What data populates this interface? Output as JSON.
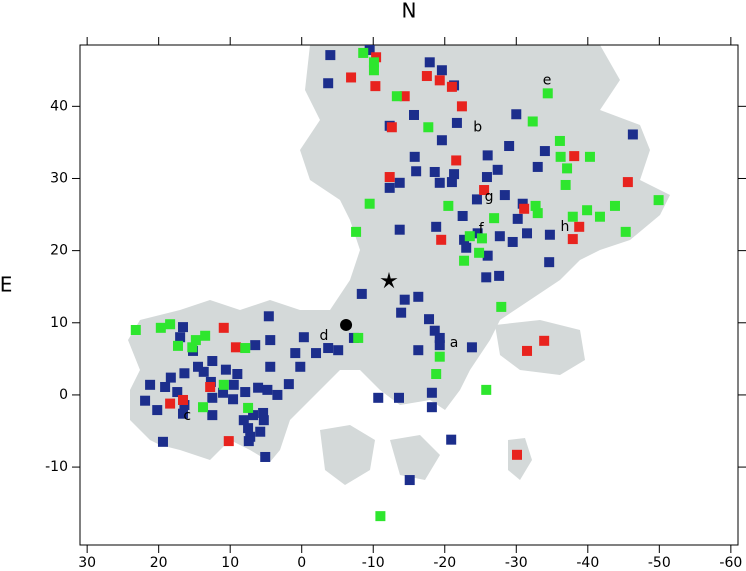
{
  "chart_data": {
    "type": "scatter",
    "top_label": "N",
    "left_label": "E",
    "xlim": [
      31,
      -61
    ],
    "ylim": [
      -20.8,
      48.5
    ],
    "xticks": [
      30,
      20,
      10,
      0,
      -10,
      -20,
      -30,
      -40,
      -50,
      -60
    ],
    "yticks": [
      -10,
      0,
      10,
      20,
      30,
      40
    ],
    "series": [
      {
        "color": "#1c2e8c",
        "x": [
          -9.5,
          -4.0,
          -17.9,
          -19.6,
          -21.3,
          -15.7,
          -12.3,
          -21.7,
          -30.0,
          -46.3,
          -15.8,
          -19.6,
          -26.0,
          -29.0,
          -34.0,
          -33.0,
          -16.0,
          -18.6,
          -21.3,
          -27.4,
          -25.9,
          -21.0,
          -13.7,
          -12.3,
          -19.3,
          -28.4,
          -30.9,
          -24.5,
          -22.5,
          -30.2,
          -31.5,
          -34.7,
          -18.8,
          -22.7,
          -23.0,
          -27.7,
          -29.5,
          -13.7,
          -24.6,
          -26.0,
          -25.8,
          -27.6,
          -34.6,
          -8.4,
          -14.4,
          -13.9,
          -16.3,
          -18.6,
          -17.8,
          -19.3,
          -19.3,
          -23.8,
          -16.3,
          -7.3,
          -5.1,
          -3.7,
          -2.0,
          -0.3,
          0.9,
          0.2,
          1.8,
          3.4,
          4.4,
          6.5,
          4.4,
          6.1,
          7.9,
          9.5,
          9.0,
          10.6,
          11.0,
          13.7,
          12.7,
          12.5,
          12.5,
          9.6,
          8.1,
          7.5,
          6.8,
          5.4,
          5.3,
          5.8,
          7.2,
          5.1,
          15.2,
          14.5,
          16.4,
          17.0,
          16.6,
          12.5,
          18.3,
          19.1,
          20.2,
          16.4,
          16.6,
          19.4,
          21.9,
          21.2,
          4.6,
          7.4,
          4.8,
          -10.7,
          -13.6,
          -18.2,
          -18.2,
          -20.9,
          -15.1,
          17.4,
          -3.7
        ],
        "values": [
          47.8,
          47.1,
          46.1,
          45.0,
          42.9,
          38.8,
          37.3,
          37.7,
          38.9,
          36.1,
          33.0,
          35.3,
          33.2,
          34.5,
          33.8,
          31.6,
          31.0,
          30.9,
          30.6,
          31.2,
          30.2,
          29.5,
          29.4,
          28.7,
          29.4,
          27.7,
          26.5,
          27.1,
          24.8,
          24.4,
          22.4,
          22.2,
          23.3,
          21.5,
          20.4,
          22.0,
          21.2,
          22.9,
          22.4,
          19.3,
          16.3,
          16.5,
          18.4,
          14.0,
          13.2,
          11.4,
          13.6,
          8.9,
          10.5,
          7.9,
          6.9,
          6.6,
          6.2,
          7.9,
          6.2,
          6.5,
          5.8,
          8.0,
          5.8,
          3.9,
          1.5,
          0,
          7.6,
          6.9,
          3.9,
          1.0,
          0.4,
          1.4,
          2.9,
          3.5,
          0.3,
          3.2,
          1.8,
          -0.4,
          -2.8,
          -0.6,
          -3.5,
          -4.6,
          -2.8,
          -2.5,
          -3.5,
          -5.1,
          -5.8,
          -8.6,
          6.1,
          3.9,
          3.0,
          8.0,
          9.4,
          4.7,
          2.4,
          1.1,
          -2.1,
          -1.4,
          -2.6,
          -6.5,
          -0.8,
          1.4,
          10.9,
          -6.4,
          0.7,
          -0.4,
          -0.4,
          0.3,
          -1.7,
          -6.2,
          -11.8,
          0.4,
          43.2
        ]
      },
      {
        "color": "#e8231e",
        "x": [
          -10.4,
          -6.9,
          -10.3,
          -14.4,
          -17.5,
          -19.3,
          -21.0,
          -22.4,
          -12.6,
          -21.6,
          -12.3,
          -25.5,
          -31.1,
          -38.8,
          -37.9,
          -19.5,
          -38.1,
          -45.6,
          10.9,
          9.2,
          12.8,
          18.4,
          16.6,
          10.2,
          -31.5,
          -33.9,
          -30.1
        ],
        "values": [
          46.8,
          44.0,
          42.8,
          41.4,
          44.2,
          43.6,
          42.7,
          40.0,
          37.1,
          32.5,
          30.2,
          28.4,
          25.8,
          23.3,
          21.6,
          21.5,
          33.1,
          29.5,
          9.3,
          6.6,
          1.1,
          -1.2,
          -0.7,
          -6.4,
          6.1,
          7.5,
          -8.3
        ]
      },
      {
        "color": "#2ee62e",
        "x": [
          -8.6,
          -10.1,
          -10.1,
          -13.3,
          -17.7,
          -32.3,
          -34.4,
          -36.1,
          -36.2,
          -40.3,
          -20.5,
          -9.5,
          -32.7,
          -33.0,
          -26.9,
          -37.9,
          -39.9,
          -41.7,
          -43.8,
          -45.3,
          -49.9,
          -25.2,
          -24.8,
          -22.7,
          -7.6,
          -27.9,
          23.2,
          19.7,
          18.4,
          14.8,
          17.3,
          15.3,
          13.5,
          10.9,
          7.9,
          7.5,
          13.8,
          -7.9,
          -19.3,
          -18.8,
          -25.8,
          -11.0,
          -23.5,
          -36.9,
          -37.1
        ],
        "values": [
          47.4,
          46.1,
          45.0,
          41.4,
          37.1,
          37.9,
          41.8,
          35.2,
          33.0,
          33.0,
          26.2,
          26.5,
          26.2,
          25.2,
          24.5,
          24.7,
          25.6,
          24.7,
          26.2,
          22.6,
          27.0,
          21.7,
          19.7,
          18.6,
          22.6,
          12.2,
          9.0,
          9.3,
          9.8,
          7.6,
          6.8,
          6.6,
          8.2,
          1.4,
          6.5,
          -1.8,
          -1.7,
          7.9,
          5.3,
          2.9,
          0.7,
          -16.8,
          22.0,
          29.1,
          31.4
        ]
      }
    ],
    "markers": [
      {
        "symbol": "star",
        "x": -12.2,
        "y": 15.8
      },
      {
        "symbol": "dot",
        "x": -6.2,
        "y": 9.7
      }
    ],
    "annotations": [
      {
        "text": "e",
        "x": -34.3,
        "y": 43.6
      },
      {
        "text": "b",
        "x": -24.6,
        "y": 37.1
      },
      {
        "text": "g",
        "x": -26.2,
        "y": 27.4
      },
      {
        "text": "h",
        "x": -36.8,
        "y": 23.3
      },
      {
        "text": "f",
        "x": -25.1,
        "y": 23.0
      },
      {
        "text": "a",
        "x": -21.3,
        "y": 7.2
      },
      {
        "text": "d",
        "x": -3.1,
        "y": 8.2
      },
      {
        "text": "c",
        "x": 16.0,
        "y": -2.9
      }
    ]
  }
}
